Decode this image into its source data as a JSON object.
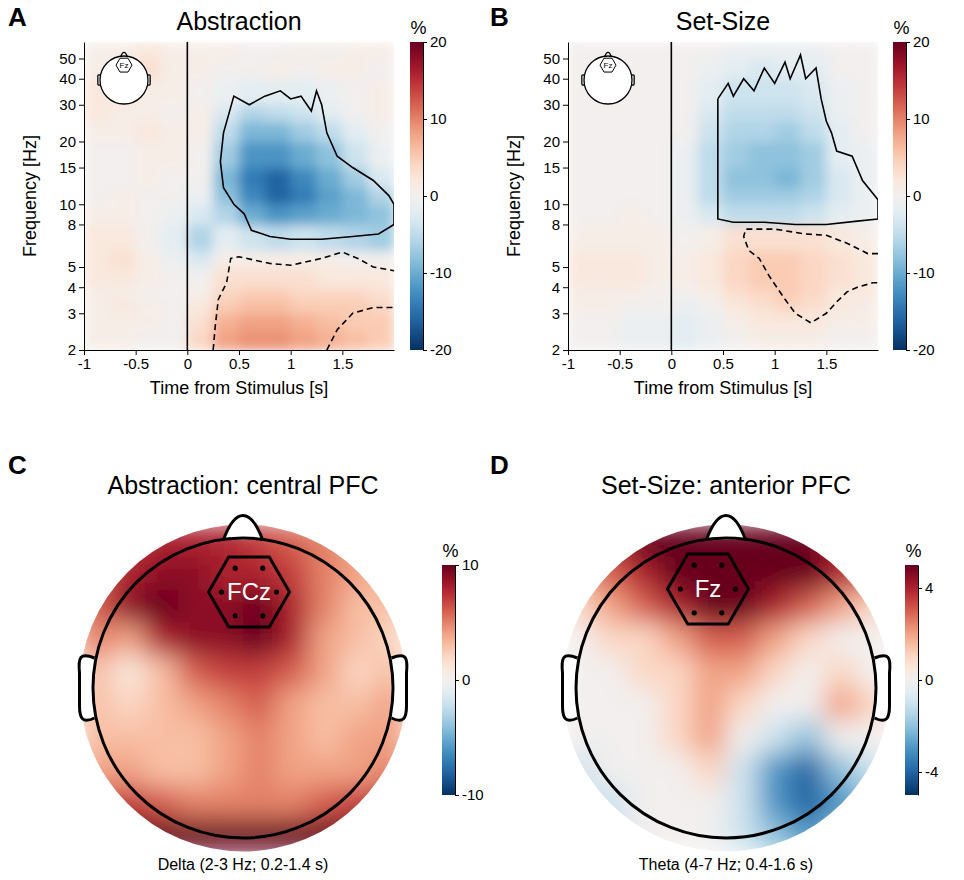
{
  "chart_data": [
    {
      "type": "heatmap",
      "panel": "A",
      "title": "Abstraction",
      "inset_label": "Fz",
      "x_label": "Time from Stimulus [s]",
      "y_label": "Frequency [Hz]",
      "xlim": [
        -1,
        2
      ],
      "xticks": [
        -1,
        -0.5,
        0,
        0.5,
        1,
        1.5
      ],
      "ylim": [
        2,
        60
      ],
      "yticks": [
        2,
        3,
        4,
        5,
        8,
        10,
        15,
        20,
        30,
        40,
        50
      ],
      "log": "y",
      "stimulus_time": 0,
      "x_bins": [
        -1,
        -0.75,
        -0.5,
        -0.25,
        0,
        0.25,
        0.5,
        0.75,
        1,
        1.25,
        1.5,
        1.75,
        2
      ],
      "y_bins": [
        2,
        2.5,
        3,
        3.5,
        4,
        5,
        6,
        8,
        10,
        12,
        15,
        20,
        25,
        30,
        40,
        50,
        60
      ],
      "cells": [
        [
          1,
          1,
          0,
          0,
          4,
          8,
          9,
          9,
          8,
          7,
          6,
          5
        ],
        [
          1,
          1,
          1,
          0,
          3,
          7,
          8,
          8,
          7,
          6,
          5,
          5
        ],
        [
          1,
          2,
          1,
          0,
          2,
          5,
          6,
          6,
          5,
          5,
          5,
          4
        ],
        [
          1,
          1,
          0,
          0,
          1,
          4,
          5,
          5,
          4,
          4,
          4,
          3
        ],
        [
          2,
          2,
          1,
          0,
          0,
          3,
          3,
          3,
          3,
          2,
          2,
          2
        ],
        [
          2,
          3,
          1,
          -1,
          -3,
          1,
          1,
          1,
          1,
          1,
          0,
          0
        ],
        [
          2,
          2,
          0,
          -2,
          -6,
          -2,
          -4,
          -5,
          -4,
          -5,
          -6,
          -7
        ],
        [
          1,
          1,
          0,
          -1,
          -3,
          -6,
          -10,
          -12,
          -11,
          -10,
          -9,
          -8
        ],
        [
          0,
          1,
          0,
          0,
          -1,
          -8,
          -13,
          -16,
          -14,
          -11,
          -9,
          -6
        ],
        [
          0,
          0,
          1,
          0,
          0,
          -9,
          -14,
          -16,
          -13,
          -10,
          -7,
          -3
        ],
        [
          0,
          0,
          1,
          1,
          0,
          -7,
          -12,
          -12,
          -10,
          -8,
          -4,
          -1
        ],
        [
          1,
          1,
          2,
          1,
          1,
          -5,
          -9,
          -9,
          -7,
          -5,
          -2,
          0
        ],
        [
          2,
          1,
          1,
          0,
          1,
          -3,
          -6,
          -5,
          -4,
          -2,
          0,
          1
        ],
        [
          2,
          2,
          1,
          1,
          0,
          -1,
          -2,
          -2,
          -2,
          -1,
          0,
          1
        ],
        [
          1,
          2,
          3,
          1,
          1,
          0,
          0,
          1,
          0,
          1,
          1,
          0
        ],
        [
          1,
          1,
          2,
          1,
          1,
          1,
          0,
          0,
          1,
          0,
          1,
          1
        ]
      ],
      "color_range": [
        -20,
        20
      ],
      "color_ticks": [
        -20,
        -10,
        0,
        10,
        20
      ],
      "color_label": "%",
      "clusters": [
        {
          "line_style": "solid",
          "points": [
            [
              0.35,
              22
            ],
            [
              0.45,
              33
            ],
            [
              0.6,
              30
            ],
            [
              0.75,
              33
            ],
            [
              0.9,
              35
            ],
            [
              1.0,
              32
            ],
            [
              1.1,
              33
            ],
            [
              1.2,
              28
            ],
            [
              1.25,
              35
            ],
            [
              1.3,
              30
            ],
            [
              1.35,
              22
            ],
            [
              1.45,
              17
            ],
            [
              1.6,
              15
            ],
            [
              1.8,
              13
            ],
            [
              1.95,
              11
            ],
            [
              2,
              10
            ],
            [
              2,
              8
            ],
            [
              1.85,
              7.2
            ],
            [
              1.6,
              7
            ],
            [
              1.3,
              6.8
            ],
            [
              1.0,
              6.8
            ],
            [
              0.8,
              7
            ],
            [
              0.62,
              7.5
            ],
            [
              0.55,
              9
            ],
            [
              0.45,
              10
            ],
            [
              0.35,
              12
            ],
            [
              0.32,
              16
            ],
            [
              0.35,
              22
            ]
          ]
        },
        {
          "line_style": "dashed",
          "points": [
            [
              0.25,
              2
            ],
            [
              0.27,
              2.6
            ],
            [
              0.3,
              3.5
            ],
            [
              0.38,
              4.2
            ],
            [
              0.42,
              5.5
            ],
            [
              0.5,
              5.6
            ],
            [
              0.8,
              5.2
            ],
            [
              1.0,
              5.1
            ],
            [
              1.3,
              5.5
            ],
            [
              1.5,
              5.9
            ],
            [
              1.65,
              5.5
            ],
            [
              1.8,
              5.0
            ],
            [
              2,
              4.8
            ]
          ]
        },
        {
          "line_style": "dashed",
          "points": [
            [
              1.35,
              2
            ],
            [
              1.45,
              2.5
            ],
            [
              1.6,
              3.0
            ],
            [
              1.8,
              3.2
            ],
            [
              2,
              3.2
            ]
          ]
        }
      ]
    },
    {
      "type": "heatmap",
      "panel": "B",
      "title": "Set-Size",
      "inset_label": "Fz",
      "x_label": "Time from Stimulus [s]",
      "y_label": "Frequency [Hz]",
      "xlim": [
        -1,
        2
      ],
      "xticks": [
        -1,
        -0.5,
        0,
        0.5,
        1,
        1.5
      ],
      "ylim": [
        2,
        60
      ],
      "yticks": [
        2,
        3,
        4,
        5,
        8,
        10,
        15,
        20,
        30,
        40,
        50
      ],
      "log": "y",
      "stimulus_time": 0,
      "x_bins": [
        -1,
        -0.75,
        -0.5,
        -0.25,
        0,
        0.25,
        0.5,
        0.75,
        1,
        1.25,
        1.5,
        1.75,
        2
      ],
      "y_bins": [
        2,
        2.5,
        3,
        3.5,
        4,
        5,
        6,
        8,
        10,
        12,
        15,
        20,
        25,
        30,
        40,
        50,
        60
      ],
      "cells": [
        [
          0,
          0,
          -1,
          -1,
          -2,
          -1,
          0,
          1,
          1,
          1,
          0,
          0
        ],
        [
          0,
          0,
          -1,
          -1,
          -2,
          -1,
          1,
          2,
          2,
          2,
          1,
          1
        ],
        [
          1,
          1,
          0,
          0,
          -1,
          0,
          2,
          3,
          4,
          3,
          2,
          1
        ],
        [
          1,
          1,
          1,
          0,
          0,
          1,
          3,
          4,
          5,
          4,
          2,
          2
        ],
        [
          2,
          2,
          2,
          1,
          1,
          2,
          4,
          5,
          5,
          4,
          3,
          2
        ],
        [
          2,
          2,
          2,
          1,
          1,
          2,
          4,
          5,
          5,
          4,
          3,
          2
        ],
        [
          1,
          1,
          1,
          1,
          0,
          1,
          3,
          3,
          3,
          3,
          2,
          1
        ],
        [
          0,
          0,
          1,
          0,
          -1,
          -3,
          -5,
          -5,
          -5,
          -4,
          -2,
          -1
        ],
        [
          0,
          0,
          0,
          0,
          -1,
          -5,
          -7,
          -7,
          -7,
          -6,
          -3,
          -1
        ],
        [
          0,
          0,
          0,
          0,
          -1,
          -5,
          -8,
          -8,
          -9,
          -7,
          -3,
          -1
        ],
        [
          0,
          0,
          0,
          0,
          -1,
          -5,
          -7,
          -8,
          -8,
          -7,
          -2,
          -1
        ],
        [
          0,
          0,
          0,
          0,
          0,
          -4,
          -6,
          -6,
          -7,
          -5,
          -2,
          0
        ],
        [
          0,
          0,
          0,
          0,
          0,
          -3,
          -5,
          -5,
          -5,
          -4,
          -1,
          0
        ],
        [
          0,
          0,
          0,
          0,
          0,
          -2,
          -4,
          -4,
          -4,
          -3,
          -1,
          0
        ],
        [
          0,
          0,
          0,
          0,
          0,
          -1,
          -2,
          -3,
          -2,
          -2,
          0,
          0
        ],
        [
          0,
          0,
          0,
          0,
          0,
          0,
          -1,
          -1,
          -1,
          -1,
          0,
          0
        ]
      ],
      "color_range": [
        -20,
        20
      ],
      "color_ticks": [
        -20,
        -10,
        0,
        10,
        20
      ],
      "color_label": "%",
      "clusters": [
        {
          "line_style": "solid",
          "points": [
            [
              0.45,
              32
            ],
            [
              0.55,
              38
            ],
            [
              0.6,
              33
            ],
            [
              0.7,
              40
            ],
            [
              0.8,
              35
            ],
            [
              0.9,
              45
            ],
            [
              1.0,
              38
            ],
            [
              1.1,
              48
            ],
            [
              1.15,
              40
            ],
            [
              1.25,
              52
            ],
            [
              1.3,
              40
            ],
            [
              1.4,
              45
            ],
            [
              1.45,
              32
            ],
            [
              1.5,
              25
            ],
            [
              1.55,
              22
            ],
            [
              1.6,
              18
            ],
            [
              1.75,
              17
            ],
            [
              1.85,
              13
            ],
            [
              2,
              10.5
            ],
            [
              2,
              8.5
            ],
            [
              1.8,
              8.3
            ],
            [
              1.5,
              8.0
            ],
            [
              1.2,
              8.0
            ],
            [
              0.9,
              8.2
            ],
            [
              0.6,
              8.2
            ],
            [
              0.45,
              8.5
            ],
            [
              0.45,
              20
            ],
            [
              0.45,
              32
            ]
          ]
        },
        {
          "line_style": "dashed",
          "points": [
            [
              2,
              5.8
            ],
            [
              1.9,
              5.8
            ],
            [
              1.7,
              6.5
            ],
            [
              1.5,
              7.1
            ],
            [
              1.3,
              7.2
            ],
            [
              1.0,
              7.6
            ],
            [
              0.72,
              7.6
            ],
            [
              0.7,
              7.0
            ],
            [
              0.75,
              6.0
            ],
            [
              0.85,
              5.5
            ],
            [
              0.95,
              4.5
            ],
            [
              1.1,
              3.5
            ],
            [
              1.2,
              3.0
            ],
            [
              1.35,
              2.7
            ],
            [
              1.5,
              3.0
            ],
            [
              1.6,
              3.4
            ],
            [
              1.7,
              3.8
            ],
            [
              1.8,
              4.0
            ],
            [
              1.95,
              4.2
            ],
            [
              2,
              4.2
            ]
          ]
        }
      ]
    },
    {
      "type": "topomap",
      "panel": "C",
      "title": "Abstraction: central PFC",
      "electrode_label": "FCz",
      "caption": "Delta (2-3 Hz; 0.2-1.4 s)",
      "cells": [
        [
          5,
          7,
          8,
          8,
          8,
          7,
          6,
          5,
          4,
          4
        ],
        [
          6,
          8,
          9,
          9,
          8,
          8,
          7,
          5,
          4,
          3
        ],
        [
          6,
          9,
          10,
          9,
          9,
          10,
          8,
          5,
          3,
          3
        ],
        [
          5,
          4,
          8,
          9,
          9,
          10,
          8,
          4,
          3,
          2
        ],
        [
          3,
          1,
          3,
          6,
          7,
          7,
          6,
          4,
          2,
          3
        ],
        [
          3,
          2,
          3,
          4,
          5,
          6,
          4,
          3,
          3,
          4
        ],
        [
          3,
          3,
          3,
          3,
          4,
          5,
          4,
          3,
          4,
          4
        ],
        [
          4,
          4,
          3,
          3,
          4,
          5,
          4,
          4,
          4,
          5
        ],
        [
          6,
          7,
          6,
          5,
          5,
          5,
          5,
          6,
          7,
          7
        ],
        [
          9,
          10,
          10,
          10,
          10,
          10,
          10,
          10,
          10,
          9
        ]
      ],
      "color_range": [
        -10,
        10
      ],
      "color_ticks": [
        -10,
        0,
        10
      ],
      "color_label": "%"
    },
    {
      "type": "topomap",
      "panel": "D",
      "title": "Set-Size: anterior PFC",
      "electrode_label": "Fz",
      "caption": "Theta (4-7 Hz; 0.4-1.6 s)",
      "cells": [
        [
          3,
          4,
          5,
          5,
          5,
          5,
          5,
          5,
          4,
          3
        ],
        [
          2,
          3,
          4,
          5,
          5,
          5,
          5,
          5,
          4,
          3
        ],
        [
          1,
          2,
          3,
          4,
          5,
          5,
          4,
          3,
          2,
          1
        ],
        [
          0,
          1,
          1,
          2,
          3,
          3,
          2,
          1,
          0,
          0
        ],
        [
          0,
          0,
          1,
          1,
          2,
          2,
          1,
          0,
          1,
          0
        ],
        [
          0,
          0,
          0,
          1,
          2,
          1,
          0,
          0,
          2,
          1
        ],
        [
          0,
          0,
          0,
          1,
          2,
          0,
          -1,
          -2,
          0,
          0
        ],
        [
          -1,
          0,
          0,
          0,
          1,
          -1,
          -3,
          -4,
          -2,
          -1
        ],
        [
          -1,
          -1,
          0,
          0,
          0,
          -1,
          -3,
          -4,
          -3,
          -2
        ],
        [
          -1,
          -1,
          0,
          0,
          0,
          -1,
          -2,
          -3,
          -2,
          -1
        ]
      ],
      "color_range": [
        -5,
        5
      ],
      "color_ticks": [
        -4,
        0,
        4
      ],
      "color_label": "%"
    }
  ]
}
